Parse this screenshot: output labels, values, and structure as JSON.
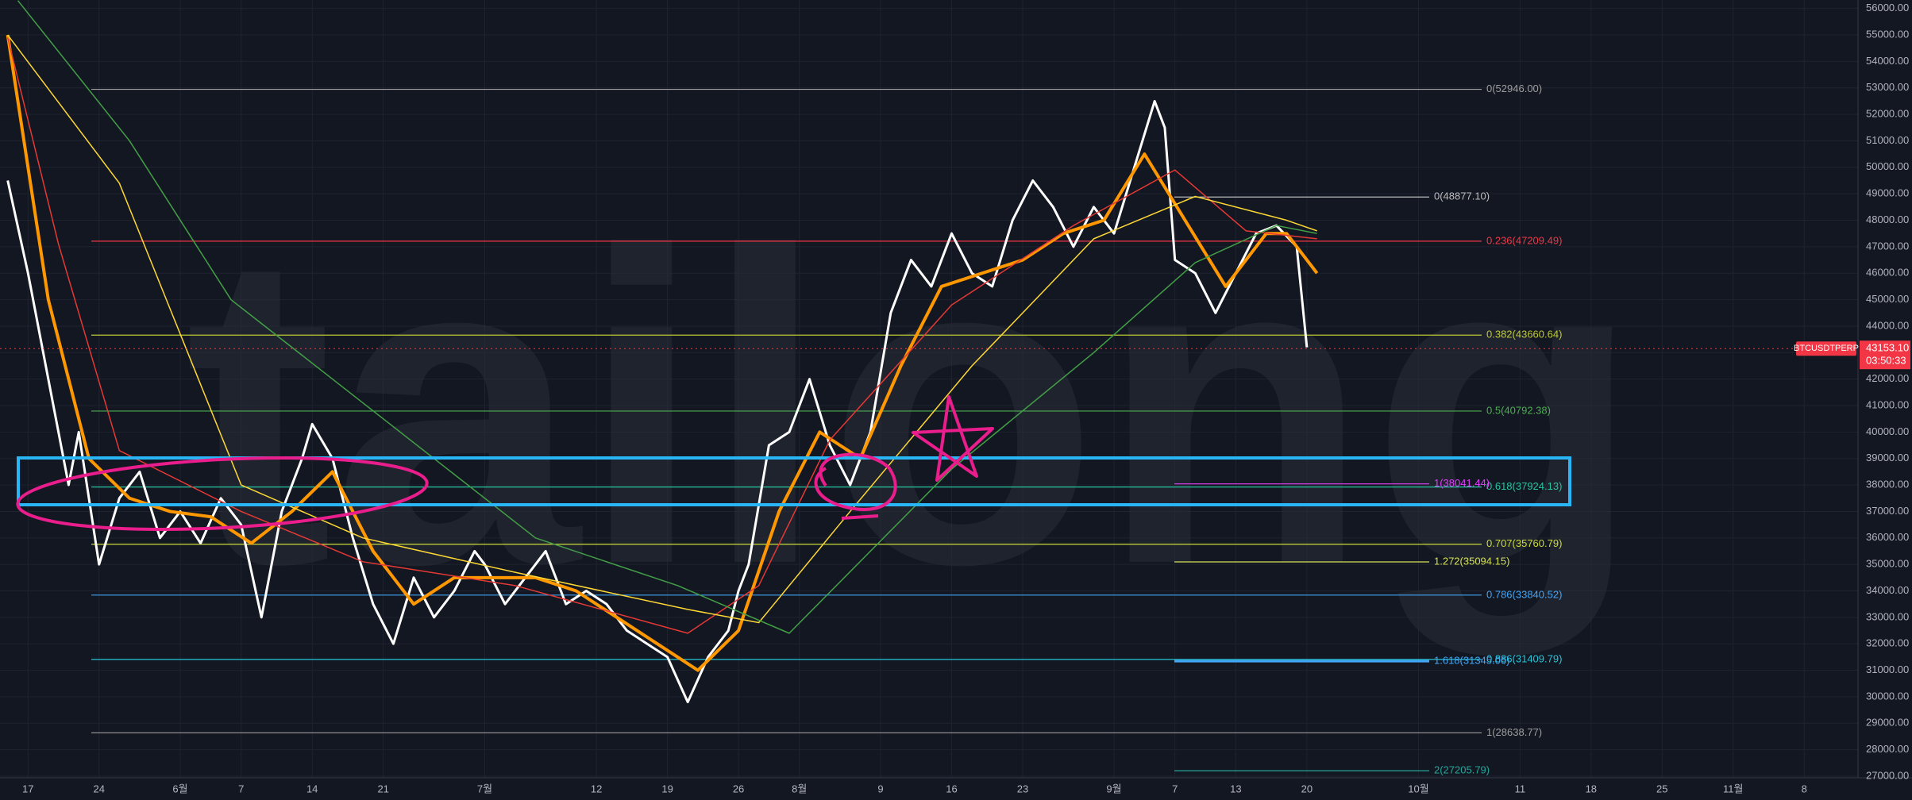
{
  "chart_data": {
    "type": "line",
    "watermark": "tailong",
    "xlim": [
      -2.76,
      180.3
    ],
    "xticks": [
      {
        "value": 0,
        "label": "17"
      },
      {
        "value": 7,
        "label": "24"
      },
      {
        "value": 15,
        "label": "6월"
      },
      {
        "value": 21,
        "label": "7"
      },
      {
        "value": 28,
        "label": "14"
      },
      {
        "value": 35,
        "label": "21"
      },
      {
        "value": 45,
        "label": "7월"
      },
      {
        "value": 56,
        "label": "12"
      },
      {
        "value": 63,
        "label": "19"
      },
      {
        "value": 70,
        "label": "26"
      },
      {
        "value": 76,
        "label": "8월"
      },
      {
        "value": 84,
        "label": "9"
      },
      {
        "value": 91,
        "label": "16"
      },
      {
        "value": 98,
        "label": "23"
      },
      {
        "value": 107,
        "label": "9월"
      },
      {
        "value": 113,
        "label": "7"
      },
      {
        "value": 119,
        "label": "13"
      },
      {
        "value": 126,
        "label": "20"
      },
      {
        "value": 137,
        "label": "10월"
      },
      {
        "value": 147,
        "label": "11"
      },
      {
        "value": 154,
        "label": "18"
      },
      {
        "value": 161,
        "label": "25"
      },
      {
        "value": 168,
        "label": "11월"
      },
      {
        "value": 175,
        "label": "8"
      }
    ],
    "ylim": [
      26940,
      56320
    ],
    "yticks": [
      {
        "value": 27000,
        "label": "27000.00"
      },
      {
        "value": 28000,
        "label": "28000.00"
      },
      {
        "value": 29000,
        "label": "29000.00"
      },
      {
        "value": 30000,
        "label": "30000.00"
      },
      {
        "value": 31000,
        "label": "31000.00"
      },
      {
        "value": 32000,
        "label": "32000.00"
      },
      {
        "value": 33000,
        "label": "33000.00"
      },
      {
        "value": 34000,
        "label": "34000.00"
      },
      {
        "value": 35000,
        "label": "35000.00"
      },
      {
        "value": 36000,
        "label": "36000.00"
      },
      {
        "value": 37000,
        "label": "37000.00"
      },
      {
        "value": 38000,
        "label": "38000.00"
      },
      {
        "value": 39000,
        "label": "39000.00"
      },
      {
        "value": 40000,
        "label": "40000.00"
      },
      {
        "value": 41000,
        "label": "41000.00"
      },
      {
        "value": 42000,
        "label": "42000.00"
      },
      {
        "value": 43000,
        "label": "43000.00"
      },
      {
        "value": 44000,
        "label": "44000.00"
      },
      {
        "value": 45000,
        "label": "45000.00"
      },
      {
        "value": 46000,
        "label": "46000.00"
      },
      {
        "value": 47000,
        "label": "47000.00"
      },
      {
        "value": 48000,
        "label": "48000.00"
      },
      {
        "value": 49000,
        "label": "49000.00"
      },
      {
        "value": 50000,
        "label": "50000.00"
      },
      {
        "value": 51000,
        "label": "51000.00"
      },
      {
        "value": 52000,
        "label": "52000.00"
      },
      {
        "value": 53000,
        "label": "53000.00"
      },
      {
        "value": 54000,
        "label": "54000.00"
      },
      {
        "value": 55000,
        "label": "55000.00"
      },
      {
        "value": 56000,
        "label": "56000.00"
      }
    ],
    "grid": true,
    "symbol": "BTCUSDTPERP",
    "last_price": {
      "value": 43153.1,
      "label": "43153.10"
    },
    "countdown": "03:50:33",
    "series": [
      {
        "color": "#ffffff",
        "width": 3,
        "x": [
          -2,
          0,
          2,
          4,
          5,
          7,
          9,
          11,
          13,
          15,
          17,
          19,
          21,
          23,
          25,
          27,
          28,
          30,
          32,
          34,
          36,
          38,
          40,
          42,
          44,
          45,
          47,
          49,
          51,
          53,
          55,
          57,
          59,
          61,
          63,
          65,
          67,
          69,
          70,
          71,
          73,
          75,
          77,
          79,
          81,
          83,
          85,
          87,
          89,
          91,
          93,
          95,
          97,
          99,
          101,
          103,
          105,
          107,
          109,
          111,
          112,
          113,
          115,
          117,
          119,
          121,
          123,
          125,
          126
        ],
        "values": [
          49500,
          46000,
          42000,
          38000,
          40000,
          35000,
          37500,
          38500,
          36000,
          37000,
          35800,
          37500,
          36500,
          33000,
          37000,
          39000,
          40300,
          39000,
          36000,
          33500,
          32000,
          34500,
          33000,
          34000,
          35500,
          35000,
          33500,
          34500,
          35500,
          33500,
          34000,
          33500,
          32500,
          32000,
          31500,
          29800,
          31500,
          32500,
          34000,
          35000,
          39500,
          40000,
          42000,
          39500,
          38000,
          40000,
          44500,
          46500,
          45500,
          47500,
          46000,
          45500,
          48000,
          49500,
          48500,
          47000,
          48500,
          47500,
          50000,
          52500,
          51500,
          46500,
          46000,
          44500,
          46000,
          47500,
          47800,
          47000,
          43200
        ]
      },
      {
        "color": "#ff9800",
        "width": 4,
        "x": [
          -2,
          2,
          6,
          10,
          14,
          18,
          22,
          26,
          30,
          34,
          38,
          42,
          46,
          50,
          54,
          58,
          62,
          66,
          70,
          74,
          78,
          82,
          86,
          90,
          94,
          98,
          102,
          106,
          110,
          114,
          118,
          122,
          124,
          127
        ],
        "values": [
          55000,
          45000,
          39000,
          37500,
          37000,
          36800,
          35800,
          37000,
          38500,
          35500,
          33500,
          34500,
          34500,
          34500,
          34000,
          33000,
          32000,
          31000,
          32500,
          37000,
          40000,
          39000,
          42500,
          45500,
          46000,
          46500,
          47500,
          48000,
          50500,
          48000,
          45500,
          47500,
          47500,
          46000
        ]
      },
      {
        "color": "#e53935",
        "width": 1.5,
        "x": [
          -2,
          3,
          9,
          21,
          33,
          48,
          65,
          72,
          79,
          91,
          103,
          113,
          120,
          127
        ],
        "values": [
          54900,
          47100,
          39300,
          37000,
          35100,
          34200,
          32400,
          34200,
          39700,
          44800,
          47800,
          49900,
          47600,
          47300
        ]
      },
      {
        "color": "#fdd835",
        "width": 1.5,
        "x": [
          -2,
          9,
          21,
          33,
          48,
          65,
          72,
          81,
          93,
          105,
          115,
          124,
          127
        ],
        "values": [
          55000,
          49400,
          38000,
          36000,
          34700,
          33300,
          32800,
          37000,
          42500,
          47300,
          48900,
          48000,
          47600
        ]
      },
      {
        "color": "#43a047",
        "width": 1.5,
        "x": [
          -1,
          10,
          20,
          33,
          50,
          64,
          75,
          91,
          105,
          115,
          123,
          127
        ],
        "values": [
          56300,
          51000,
          45000,
          41100,
          36000,
          34200,
          32400,
          38600,
          43000,
          46400,
          47800,
          47500
        ]
      }
    ],
    "fibonacci": [
      {
        "levels": [
          {
            "value": 52946.0,
            "label": "0(52946.00)",
            "color": "#9e9e9e"
          },
          {
            "value": 47209.49,
            "label": "0.236(47209.49)",
            "color": "#f23645"
          },
          {
            "value": 43660.64,
            "label": "0.382(43660.64)",
            "color": "#c0ca33"
          },
          {
            "value": 40792.38,
            "label": "0.5(40792.38)",
            "color": "#4caf50"
          },
          {
            "value": 37924.13,
            "label": "0.618(37924.13)",
            "color": "#26c6a0"
          },
          {
            "value": 35760.79,
            "label": "0.707(35760.79)",
            "color": "#cddc39"
          },
          {
            "value": 33840.52,
            "label": "0.786(33840.52)",
            "color": "#42a5f5"
          },
          {
            "value": 31409.79,
            "label": "0.886(31409.79)",
            "color": "#26c6da"
          },
          {
            "value": 28638.77,
            "label": "1(28638.77)",
            "color": "#9e9e9e"
          }
        ]
      },
      {
        "levels": [
          {
            "value": 48877.1,
            "label": "0(48877.10)",
            "color": "#bdbdbd"
          },
          {
            "value": 38041.44,
            "label": "1(38041.44)",
            "color": "#e040fb"
          },
          {
            "value": 35094.15,
            "label": "1.272(35094.15)",
            "color": "#d4e157"
          },
          {
            "value": 31345.06,
            "label": "1.618(31345.06)",
            "color": "#42a5f5"
          },
          {
            "value": 27205.79,
            "label": "2(27205.79)",
            "color": "#26a69a"
          }
        ]
      }
    ]
  }
}
